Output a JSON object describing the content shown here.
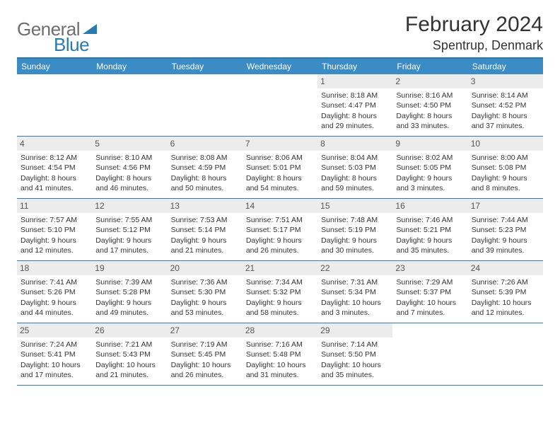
{
  "logo": {
    "part1": "General",
    "part2": "Blue"
  },
  "header": {
    "title": "February 2024",
    "location": "Spentrup, Denmark"
  },
  "colors": {
    "brand_blue": "#2a7ab0",
    "header_bg": "#3b8bc4",
    "daynum_bg": "#ececec",
    "text": "#333333",
    "logo_gray": "#6d6e71"
  },
  "weekdays": [
    "Sunday",
    "Monday",
    "Tuesday",
    "Wednesday",
    "Thursday",
    "Friday",
    "Saturday"
  ],
  "weeks": [
    [
      null,
      null,
      null,
      null,
      {
        "day": "1",
        "sunrise": "Sunrise: 8:18 AM",
        "sunset": "Sunset: 4:47 PM",
        "daylight1": "Daylight: 8 hours",
        "daylight2": "and 29 minutes."
      },
      {
        "day": "2",
        "sunrise": "Sunrise: 8:16 AM",
        "sunset": "Sunset: 4:50 PM",
        "daylight1": "Daylight: 8 hours",
        "daylight2": "and 33 minutes."
      },
      {
        "day": "3",
        "sunrise": "Sunrise: 8:14 AM",
        "sunset": "Sunset: 4:52 PM",
        "daylight1": "Daylight: 8 hours",
        "daylight2": "and 37 minutes."
      }
    ],
    [
      {
        "day": "4",
        "sunrise": "Sunrise: 8:12 AM",
        "sunset": "Sunset: 4:54 PM",
        "daylight1": "Daylight: 8 hours",
        "daylight2": "and 41 minutes."
      },
      {
        "day": "5",
        "sunrise": "Sunrise: 8:10 AM",
        "sunset": "Sunset: 4:56 PM",
        "daylight1": "Daylight: 8 hours",
        "daylight2": "and 46 minutes."
      },
      {
        "day": "6",
        "sunrise": "Sunrise: 8:08 AM",
        "sunset": "Sunset: 4:59 PM",
        "daylight1": "Daylight: 8 hours",
        "daylight2": "and 50 minutes."
      },
      {
        "day": "7",
        "sunrise": "Sunrise: 8:06 AM",
        "sunset": "Sunset: 5:01 PM",
        "daylight1": "Daylight: 8 hours",
        "daylight2": "and 54 minutes."
      },
      {
        "day": "8",
        "sunrise": "Sunrise: 8:04 AM",
        "sunset": "Sunset: 5:03 PM",
        "daylight1": "Daylight: 8 hours",
        "daylight2": "and 59 minutes."
      },
      {
        "day": "9",
        "sunrise": "Sunrise: 8:02 AM",
        "sunset": "Sunset: 5:05 PM",
        "daylight1": "Daylight: 9 hours",
        "daylight2": "and 3 minutes."
      },
      {
        "day": "10",
        "sunrise": "Sunrise: 8:00 AM",
        "sunset": "Sunset: 5:08 PM",
        "daylight1": "Daylight: 9 hours",
        "daylight2": "and 8 minutes."
      }
    ],
    [
      {
        "day": "11",
        "sunrise": "Sunrise: 7:57 AM",
        "sunset": "Sunset: 5:10 PM",
        "daylight1": "Daylight: 9 hours",
        "daylight2": "and 12 minutes."
      },
      {
        "day": "12",
        "sunrise": "Sunrise: 7:55 AM",
        "sunset": "Sunset: 5:12 PM",
        "daylight1": "Daylight: 9 hours",
        "daylight2": "and 17 minutes."
      },
      {
        "day": "13",
        "sunrise": "Sunrise: 7:53 AM",
        "sunset": "Sunset: 5:14 PM",
        "daylight1": "Daylight: 9 hours",
        "daylight2": "and 21 minutes."
      },
      {
        "day": "14",
        "sunrise": "Sunrise: 7:51 AM",
        "sunset": "Sunset: 5:17 PM",
        "daylight1": "Daylight: 9 hours",
        "daylight2": "and 26 minutes."
      },
      {
        "day": "15",
        "sunrise": "Sunrise: 7:48 AM",
        "sunset": "Sunset: 5:19 PM",
        "daylight1": "Daylight: 9 hours",
        "daylight2": "and 30 minutes."
      },
      {
        "day": "16",
        "sunrise": "Sunrise: 7:46 AM",
        "sunset": "Sunset: 5:21 PM",
        "daylight1": "Daylight: 9 hours",
        "daylight2": "and 35 minutes."
      },
      {
        "day": "17",
        "sunrise": "Sunrise: 7:44 AM",
        "sunset": "Sunset: 5:23 PM",
        "daylight1": "Daylight: 9 hours",
        "daylight2": "and 39 minutes."
      }
    ],
    [
      {
        "day": "18",
        "sunrise": "Sunrise: 7:41 AM",
        "sunset": "Sunset: 5:26 PM",
        "daylight1": "Daylight: 9 hours",
        "daylight2": "and 44 minutes."
      },
      {
        "day": "19",
        "sunrise": "Sunrise: 7:39 AM",
        "sunset": "Sunset: 5:28 PM",
        "daylight1": "Daylight: 9 hours",
        "daylight2": "and 49 minutes."
      },
      {
        "day": "20",
        "sunrise": "Sunrise: 7:36 AM",
        "sunset": "Sunset: 5:30 PM",
        "daylight1": "Daylight: 9 hours",
        "daylight2": "and 53 minutes."
      },
      {
        "day": "21",
        "sunrise": "Sunrise: 7:34 AM",
        "sunset": "Sunset: 5:32 PM",
        "daylight1": "Daylight: 9 hours",
        "daylight2": "and 58 minutes."
      },
      {
        "day": "22",
        "sunrise": "Sunrise: 7:31 AM",
        "sunset": "Sunset: 5:34 PM",
        "daylight1": "Daylight: 10 hours",
        "daylight2": "and 3 minutes."
      },
      {
        "day": "23",
        "sunrise": "Sunrise: 7:29 AM",
        "sunset": "Sunset: 5:37 PM",
        "daylight1": "Daylight: 10 hours",
        "daylight2": "and 7 minutes."
      },
      {
        "day": "24",
        "sunrise": "Sunrise: 7:26 AM",
        "sunset": "Sunset: 5:39 PM",
        "daylight1": "Daylight: 10 hours",
        "daylight2": "and 12 minutes."
      }
    ],
    [
      {
        "day": "25",
        "sunrise": "Sunrise: 7:24 AM",
        "sunset": "Sunset: 5:41 PM",
        "daylight1": "Daylight: 10 hours",
        "daylight2": "and 17 minutes."
      },
      {
        "day": "26",
        "sunrise": "Sunrise: 7:21 AM",
        "sunset": "Sunset: 5:43 PM",
        "daylight1": "Daylight: 10 hours",
        "daylight2": "and 21 minutes."
      },
      {
        "day": "27",
        "sunrise": "Sunrise: 7:19 AM",
        "sunset": "Sunset: 5:45 PM",
        "daylight1": "Daylight: 10 hours",
        "daylight2": "and 26 minutes."
      },
      {
        "day": "28",
        "sunrise": "Sunrise: 7:16 AM",
        "sunset": "Sunset: 5:48 PM",
        "daylight1": "Daylight: 10 hours",
        "daylight2": "and 31 minutes."
      },
      {
        "day": "29",
        "sunrise": "Sunrise: 7:14 AM",
        "sunset": "Sunset: 5:50 PM",
        "daylight1": "Daylight: 10 hours",
        "daylight2": "and 35 minutes."
      },
      null,
      null
    ]
  ]
}
